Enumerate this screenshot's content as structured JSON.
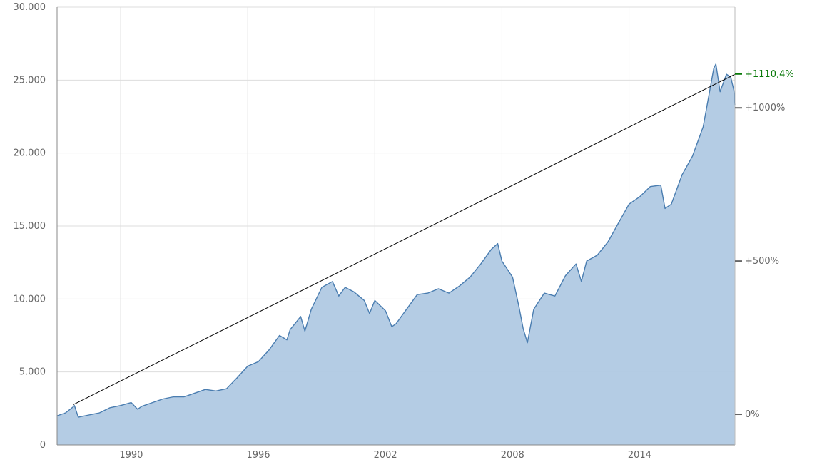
{
  "chart_data": {
    "type": "area",
    "title": "",
    "xlabel": "",
    "ylabel": "",
    "x_ticks": [
      "1990",
      "1996",
      "2002",
      "2008",
      "2014"
    ],
    "y_ticks": [
      "0",
      "5.000",
      "10.000",
      "15.000",
      "20.000",
      "25.000",
      "30.000"
    ],
    "ylim": [
      0,
      30000
    ],
    "xlim": [
      1987.0,
      2019.0
    ],
    "grid": true,
    "series": [
      {
        "color": "#4a7db0",
        "x": [
          1987.0,
          1987.4,
          1987.75,
          1987.82,
          1988.0,
          1988.5,
          1989.0,
          1989.5,
          1990.0,
          1990.5,
          1990.8,
          1991.0,
          1991.5,
          1992.0,
          1992.5,
          1993.0,
          1993.5,
          1994.0,
          1994.5,
          1995.0,
          1995.5,
          1996.0,
          1996.5,
          1997.0,
          1997.5,
          1997.85,
          1998.0,
          1998.5,
          1998.7,
          1999.0,
          1999.5,
          2000.0,
          2000.3,
          2000.6,
          2001.0,
          2001.5,
          2001.75,
          2002.0,
          2002.5,
          2002.8,
          2003.0,
          2003.5,
          2004.0,
          2004.5,
          2005.0,
          2005.5,
          2006.0,
          2006.5,
          2007.0,
          2007.5,
          2007.8,
          2008.0,
          2008.5,
          2008.8,
          2009.0,
          2009.2,
          2009.5,
          2010.0,
          2010.5,
          2011.0,
          2011.5,
          2011.75,
          2012.0,
          2012.5,
          2013.0,
          2013.5,
          2014.0,
          2014.5,
          2015.0,
          2015.5,
          2015.7,
          2016.0,
          2016.5,
          2017.0,
          2017.5,
          2018.0,
          2018.1,
          2018.3,
          2018.6,
          2018.8,
          2018.95,
          2019.0
        ],
        "y": [
          2000,
          2200,
          2600,
          2700,
          1900,
          2050,
          2200,
          2550,
          2700,
          2900,
          2450,
          2650,
          2900,
          3150,
          3300,
          3300,
          3550,
          3800,
          3700,
          3850,
          4600,
          5400,
          5700,
          6500,
          7500,
          7200,
          7900,
          8800,
          7800,
          9300,
          10800,
          11200,
          10200,
          10800,
          10500,
          9900,
          9000,
          9900,
          9200,
          8100,
          8300,
          9300,
          10300,
          10400,
          10700,
          10400,
          10900,
          11500,
          12400,
          13400,
          13800,
          12600,
          11500,
          9500,
          8000,
          7000,
          9300,
          10400,
          10200,
          11600,
          12400,
          11200,
          12600,
          13000,
          13900,
          15200,
          16500,
          17000,
          17700,
          17800,
          16200,
          16500,
          18500,
          19800,
          21800,
          25800,
          26100,
          24200,
          25400,
          25200,
          24300,
          23300
        ]
      }
    ],
    "trendline": {
      "x": [
        1987.75,
        2019.0
      ],
      "y": [
        2750,
        25400
      ]
    },
    "percent_axis": {
      "base_value": 2100,
      "labels": [
        {
          "text": "0%",
          "pct": 0
        },
        {
          "text": "+500%",
          "pct": 500
        },
        {
          "text": "+1000%",
          "pct": 1000
        }
      ],
      "current": {
        "text": "+1110,4%",
        "pct": 1110.4,
        "color": "#0a7a0a"
      }
    },
    "colors": {
      "area_fill": "#b0c9e3",
      "line": "#4a7db0",
      "grid": "#dddddd",
      "trend": "#000000"
    }
  }
}
